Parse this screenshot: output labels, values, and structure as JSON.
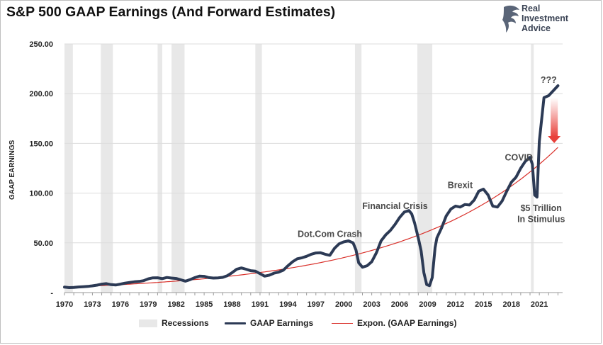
{
  "header": {
    "title": "S&P 500 GAAP Earnings (And Forward Estimates)",
    "brand_line1": "Real",
    "brand_line2": "Investment",
    "brand_line3": "Advice"
  },
  "colors": {
    "series": "#2c3a55",
    "trend": "#d9302a",
    "recession": "#e8e8e8",
    "arrow": "#e8403a"
  },
  "chart_data": {
    "type": "line",
    "ylabel": "GAAP EARNINGS",
    "ylim": [
      0,
      250
    ],
    "xlim": [
      1970,
      2023.5
    ],
    "y_ticks": [
      "250.00",
      "200.00",
      "150.00",
      "100.00",
      "50.00",
      "-"
    ],
    "y_tick_values": [
      250,
      200,
      150,
      100,
      50,
      0
    ],
    "x_ticks": [
      "1970",
      "1973",
      "1976",
      "1979",
      "1982",
      "1985",
      "1988",
      "1991",
      "1994",
      "1997",
      "2000",
      "2003",
      "2006",
      "2009",
      "2012",
      "2015",
      "2018",
      "2021"
    ],
    "grid": "horizontal",
    "legend_position": "bottom",
    "legend": [
      "Recessions",
      "GAAP Earnings",
      "Expon. (GAAP Earnings)"
    ],
    "recessions": [
      [
        1970.0,
        1970.9
      ],
      [
        1973.9,
        1975.2
      ],
      [
        1980.0,
        1980.5
      ],
      [
        1981.5,
        1982.9
      ],
      [
        1990.5,
        1991.2
      ],
      [
        2001.2,
        2001.9
      ],
      [
        2007.9,
        2009.5
      ],
      [
        2020.1,
        2020.4
      ]
    ],
    "series": [
      {
        "name": "GAAP Earnings",
        "x": [
          1970.0,
          1970.5,
          1971.0,
          1971.5,
          1972.0,
          1972.5,
          1973.0,
          1973.5,
          1974.0,
          1974.5,
          1975.0,
          1975.5,
          1976.0,
          1976.5,
          1977.0,
          1977.5,
          1978.0,
          1978.5,
          1979.0,
          1979.5,
          1980.0,
          1980.5,
          1981.0,
          1981.5,
          1982.0,
          1982.5,
          1983.0,
          1983.5,
          1984.0,
          1984.5,
          1985.0,
          1985.5,
          1986.0,
          1986.5,
          1987.0,
          1987.5,
          1988.0,
          1988.5,
          1989.0,
          1989.5,
          1990.0,
          1990.5,
          1991.0,
          1991.5,
          1992.0,
          1992.5,
          1993.0,
          1993.5,
          1994.0,
          1994.5,
          1995.0,
          1995.5,
          1996.0,
          1996.5,
          1997.0,
          1997.5,
          1998.0,
          1998.5,
          1999.0,
          1999.5,
          2000.0,
          2000.5,
          2001.0,
          2001.3,
          2001.6,
          2002.0,
          2002.5,
          2003.0,
          2003.5,
          2004.0,
          2004.5,
          2005.0,
          2005.5,
          2006.0,
          2006.5,
          2007.0,
          2007.3,
          2007.6,
          2008.0,
          2008.3,
          2008.6,
          2008.9,
          2009.2,
          2009.5,
          2009.8,
          2010.0,
          2010.5,
          2011.0,
          2011.5,
          2012.0,
          2012.5,
          2013.0,
          2013.5,
          2014.0,
          2014.5,
          2015.0,
          2015.5,
          2016.0,
          2016.5,
          2017.0,
          2017.5,
          2018.0,
          2018.5,
          2019.0,
          2019.5,
          2020.0,
          2020.25,
          2020.5,
          2020.75,
          2021.0,
          2021.5,
          2022.0,
          2022.5,
          2023.0
        ],
        "y": [
          5.5,
          5.0,
          5.2,
          5.6,
          5.9,
          6.2,
          6.8,
          7.5,
          8.5,
          9.0,
          8.0,
          7.6,
          8.5,
          9.5,
          10.2,
          10.8,
          11.2,
          12.0,
          13.8,
          14.8,
          14.9,
          14.0,
          15.2,
          14.6,
          14.2,
          12.8,
          11.5,
          13.0,
          15.0,
          16.5,
          16.3,
          15.0,
          14.6,
          14.8,
          15.3,
          17.0,
          20.0,
          23.5,
          24.8,
          23.5,
          22.0,
          21.5,
          19.0,
          16.5,
          17.5,
          19.5,
          20.5,
          22.5,
          27.0,
          31.0,
          34.0,
          35.0,
          36.5,
          38.5,
          39.8,
          40.0,
          38.5,
          37.5,
          44.5,
          49.0,
          51.0,
          52.0,
          50.0,
          43.0,
          30.0,
          25.5,
          27.0,
          31.0,
          40.0,
          52.0,
          58.0,
          62.5,
          68.5,
          75.5,
          81.0,
          82.5,
          79.0,
          70.0,
          55.0,
          42.0,
          20.0,
          8.0,
          7.0,
          15.0,
          45.0,
          55.0,
          65.0,
          77.0,
          84.0,
          87.0,
          86.0,
          88.5,
          88.0,
          93.0,
          102.0,
          104.0,
          98.0,
          87.0,
          86.0,
          92.0,
          102.0,
          111.0,
          116.0,
          125.0,
          132.0,
          136.0,
          129.0,
          98.0,
          96.0,
          152.0,
          196.0,
          198.0,
          203.0,
          208.0
        ]
      },
      {
        "name": "Expon. (GAAP Earnings)",
        "start": [
          1970.0,
          5.5
        ],
        "end": [
          2023.0,
          146.0
        ]
      }
    ],
    "annotations": [
      {
        "text": "Dot.Com Crash",
        "x": 1998.5,
        "y": 56
      },
      {
        "text": "Financial Crisis",
        "x": 2005.5,
        "y": 84
      },
      {
        "text": "Brexit",
        "x": 2012.5,
        "y": 105
      },
      {
        "text": "COVID",
        "x": 2018.8,
        "y": 133
      },
      {
        "text": "$5 Trillion",
        "x": 2021.2,
        "y": 82
      },
      {
        "text": "In Stimulus",
        "x": 2021.2,
        "y": 71
      },
      {
        "text": "???",
        "x": 2022.0,
        "y": 211
      }
    ],
    "arrow": {
      "x": 2022.6,
      "from_y": 196,
      "to_y": 151
    }
  }
}
